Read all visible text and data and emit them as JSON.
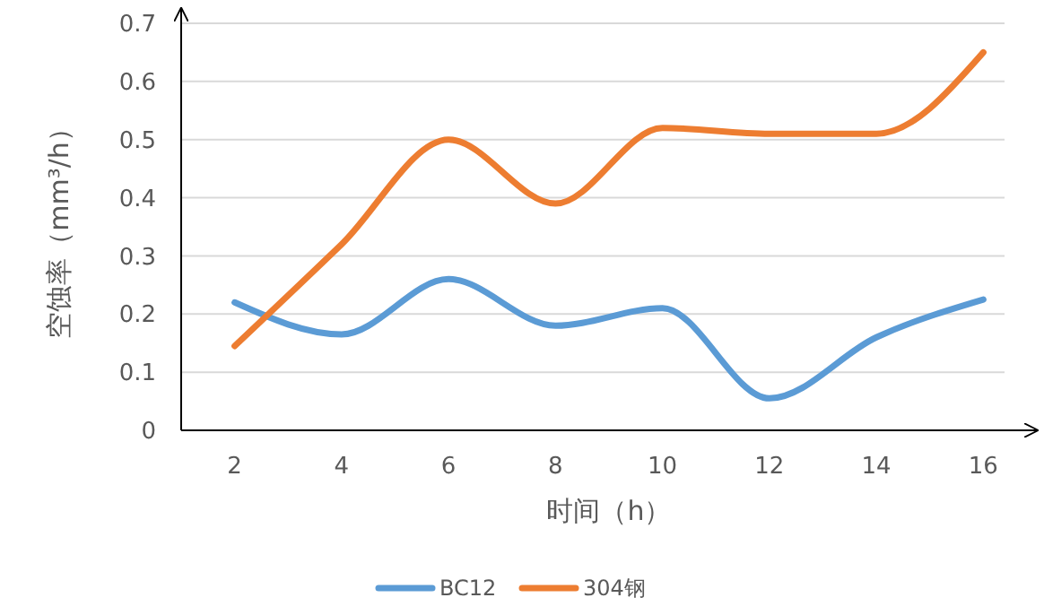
{
  "chart_data": {
    "type": "line",
    "xlabel": "时间（h）",
    "ylabel": "空蚀率（mm³/h）",
    "categories": [
      "2",
      "4",
      "6",
      "8",
      "10",
      "12",
      "14",
      "16"
    ],
    "ylim": [
      0,
      0.7
    ],
    "yticks": [
      0,
      0.1,
      0.2,
      0.3,
      0.4,
      0.5,
      0.6,
      0.7
    ],
    "grid": "y",
    "legend": "bottom",
    "marker": "none",
    "line_style": "solid",
    "series": [
      {
        "name": "BC12",
        "color": "#5b9bd5",
        "values": [
          0.22,
          0.165,
          0.26,
          0.18,
          0.21,
          0.055,
          0.16,
          0.225
        ]
      },
      {
        "name": "304钢",
        "color": "#ed7d31",
        "values": [
          0.145,
          0.32,
          0.5,
          0.39,
          0.52,
          0.51,
          0.51,
          0.65
        ]
      }
    ]
  }
}
